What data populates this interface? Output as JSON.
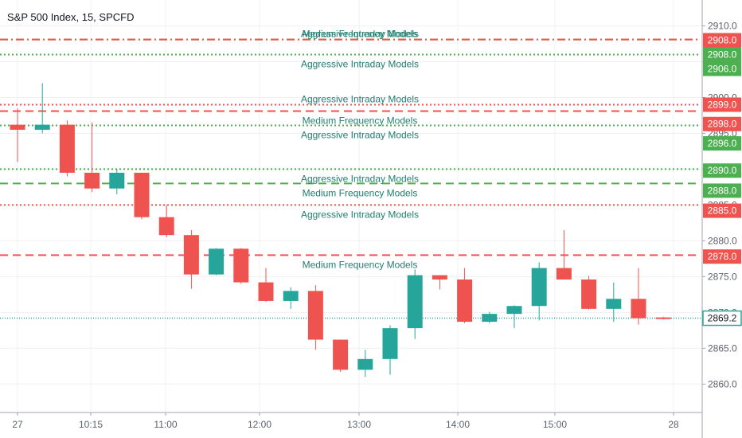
{
  "header": {
    "title": "S&P 500 Index, 15, SPCFD"
  },
  "colors": {
    "up": "#26a69a",
    "down": "#ef5350",
    "grid": "#eef0f3",
    "axis_text": "#5d606b",
    "axis_line": "#a3a6af",
    "last_price": "#26a69a",
    "label_text": "#1e7f6f"
  },
  "chart_data": {
    "type": "candlestick",
    "title": "S&P 500 Index, 15, SPCFD",
    "ylim": [
      2858.7,
      2911.5
    ],
    "y_ticks": [
      "2860.0",
      "2865.0",
      "2870.0",
      "2875.0",
      "2880.0",
      "2885.0",
      "2890.0",
      "2895.0",
      "2900.0",
      "2905.0",
      "2910.0"
    ],
    "x_ticks": [
      "27",
      "10:15",
      "11:00",
      "12:00",
      "13:00",
      "14:00",
      "15:00",
      "28"
    ],
    "grid": true,
    "candles": [
      {
        "o": 2896.2,
        "h": 2898.5,
        "l": 2891.0,
        "c": 2895.5
      },
      {
        "o": 2895.5,
        "h": 2902.0,
        "l": 2895.0,
        "c": 2896.2
      },
      {
        "o": 2896.2,
        "h": 2896.8,
        "l": 2889.0,
        "c": 2889.5
      },
      {
        "o": 2889.5,
        "h": 2896.5,
        "l": 2886.8,
        "c": 2887.3
      },
      {
        "o": 2887.3,
        "h": 2890.0,
        "l": 2886.5,
        "c": 2889.5
      },
      {
        "o": 2889.5,
        "h": 2889.5,
        "l": 2883.0,
        "c": 2883.3
      },
      {
        "o": 2883.3,
        "h": 2885.0,
        "l": 2880.5,
        "c": 2880.8
      },
      {
        "o": 2880.8,
        "h": 2881.5,
        "l": 2873.3,
        "c": 2875.3
      },
      {
        "o": 2875.3,
        "h": 2879.0,
        "l": 2875.2,
        "c": 2878.9
      },
      {
        "o": 2878.9,
        "h": 2879.0,
        "l": 2874.0,
        "c": 2874.2
      },
      {
        "o": 2874.2,
        "h": 2876.2,
        "l": 2871.5,
        "c": 2871.6
      },
      {
        "o": 2871.6,
        "h": 2873.5,
        "l": 2870.5,
        "c": 2873.0
      },
      {
        "o": 2873.0,
        "h": 2873.8,
        "l": 2864.8,
        "c": 2866.2
      },
      {
        "o": 2866.2,
        "h": 2866.2,
        "l": 2861.7,
        "c": 2862.0
      },
      {
        "o": 2862.0,
        "h": 2864.8,
        "l": 2861.0,
        "c": 2863.5
      },
      {
        "o": 2863.5,
        "h": 2868.2,
        "l": 2861.3,
        "c": 2867.8
      },
      {
        "o": 2867.8,
        "h": 2876.0,
        "l": 2866.3,
        "c": 2875.2
      },
      {
        "o": 2875.2,
        "h": 2875.2,
        "l": 2873.2,
        "c": 2874.6
      },
      {
        "o": 2874.6,
        "h": 2876.2,
        "l": 2868.5,
        "c": 2868.7
      },
      {
        "o": 2868.7,
        "h": 2870.1,
        "l": 2868.5,
        "c": 2869.8
      },
      {
        "o": 2869.8,
        "h": 2871.0,
        "l": 2867.8,
        "c": 2870.9
      },
      {
        "o": 2870.9,
        "h": 2877.0,
        "l": 2868.9,
        "c": 2876.2
      },
      {
        "o": 2876.2,
        "h": 2881.5,
        "l": 2874.8,
        "c": 2874.6
      },
      {
        "o": 2874.6,
        "h": 2875.1,
        "l": 2870.4,
        "c": 2870.5
      },
      {
        "o": 2870.5,
        "h": 2874.2,
        "l": 2868.7,
        "c": 2871.9
      },
      {
        "o": 2871.9,
        "h": 2876.2,
        "l": 2868.3,
        "c": 2869.2
      },
      {
        "o": 2869.3,
        "h": 2869.4,
        "l": 2869.0,
        "c": 2869.2
      }
    ],
    "levels": [
      {
        "price": 2908.1,
        "color": "#4caf50",
        "style": "dash-dot",
        "label": "Medium Frequency Models",
        "label_offset": 0
      },
      {
        "price": 2908.1,
        "color": "#ef5350",
        "style": "dash-dot",
        "label": "Aggressive Intraday Models",
        "label_offset": 0
      },
      {
        "price": 2906.0,
        "color": "#4caf50",
        "style": "dotted",
        "label": "Aggressive Intraday Models",
        "label_offset": 1
      },
      {
        "price": 2899.0,
        "color": "#ef5350",
        "style": "dotted",
        "label": "Aggressive Intraday Models",
        "label_offset": 0
      },
      {
        "price": 2898.1,
        "color": "#ef5350",
        "style": "dashed",
        "label": "Medium Frequency Models",
        "label_offset": 1
      },
      {
        "price": 2896.1,
        "color": "#4caf50",
        "style": "dotted",
        "label": "Aggressive Intraday Models",
        "label_offset": 1
      },
      {
        "price": 2890.0,
        "color": "#4caf50",
        "style": "dotted",
        "label": "Aggressive Intraday Models",
        "label_offset": 1
      },
      {
        "price": 2888.0,
        "color": "#4caf50",
        "style": "dashed",
        "label": "Medium Frequency Models",
        "label_offset": 1
      },
      {
        "price": 2885.0,
        "color": "#ef5350",
        "style": "dotted",
        "label": "Aggressive Intraday Models",
        "label_offset": 1
      },
      {
        "price": 2878.0,
        "color": "#ef5350",
        "style": "dashed",
        "label": "Medium Frequency Models",
        "label_offset": 1
      }
    ],
    "price_badges": [
      {
        "price": 2908.0,
        "text": "2908.0",
        "color": "#ef5350"
      },
      {
        "price": 2906.0,
        "text": "2908.0",
        "color": "#4caf50"
      },
      {
        "price": 2904.0,
        "text": "2906.0",
        "color": "#4caf50"
      },
      {
        "price": 2899.0,
        "text": "2899.0",
        "color": "#ef5350"
      },
      {
        "price": 2896.3,
        "text": "2898.0",
        "color": "#ef5350"
      },
      {
        "price": 2893.6,
        "text": "2896.0",
        "color": "#4caf50"
      },
      {
        "price": 2889.8,
        "text": "2890.0",
        "color": "#4caf50"
      },
      {
        "price": 2887.0,
        "text": "2888.0",
        "color": "#4caf50"
      },
      {
        "price": 2884.2,
        "text": "2885.0",
        "color": "#ef5350"
      },
      {
        "price": 2877.8,
        "text": "2878.0",
        "color": "#ef5350"
      }
    ],
    "last_price": {
      "price": 2869.2,
      "text": "2869.2"
    }
  }
}
